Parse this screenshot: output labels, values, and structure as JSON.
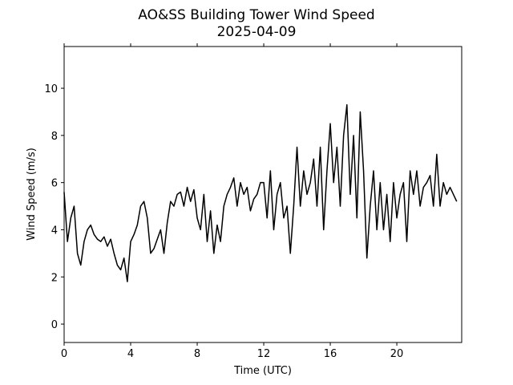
{
  "chart_data": {
    "type": "line",
    "title": "AO&SS Building Tower Wind Speed",
    "subtitle": "2025-04-09",
    "xlabel": "Time (UTC)",
    "ylabel": "Wind Speed (m/s)",
    "xlim": [
      0,
      23.9
    ],
    "ylim": [
      -0.78,
      11.77
    ],
    "xticks": [
      0,
      4,
      8,
      12,
      16,
      20
    ],
    "yticks": [
      0,
      2,
      4,
      6,
      8,
      10
    ],
    "grid": false,
    "x": [
      0,
      0.2,
      0.4,
      0.6,
      0.8,
      1,
      1.2,
      1.4,
      1.6,
      1.8,
      2,
      2.2,
      2.4,
      2.6,
      2.8,
      3,
      3.2,
      3.4,
      3.6,
      3.8,
      4,
      4.2,
      4.4,
      4.6,
      4.8,
      5,
      5.2,
      5.4,
      5.6,
      5.8,
      6,
      6.2,
      6.4,
      6.6,
      6.8,
      7,
      7.2,
      7.4,
      7.6,
      7.8,
      8,
      8.2,
      8.4,
      8.6,
      8.8,
      9,
      9.2,
      9.4,
      9.6,
      9.8,
      10,
      10.2,
      10.4,
      10.6,
      10.8,
      11,
      11.2,
      11.4,
      11.6,
      11.8,
      12,
      12.2,
      12.4,
      12.6,
      12.8,
      13,
      13.2,
      13.4,
      13.6,
      13.8,
      14,
      14.2,
      14.4,
      14.6,
      14.8,
      15,
      15.2,
      15.4,
      15.6,
      15.8,
      16,
      16.2,
      16.4,
      16.6,
      16.8,
      17,
      17.2,
      17.4,
      17.6,
      17.8,
      18,
      18.2,
      18.4,
      18.6,
      18.8,
      19,
      19.2,
      19.4,
      19.6,
      19.8,
      20,
      20.2,
      20.4,
      20.6,
      20.8,
      21,
      21.2,
      21.4,
      21.6,
      21.8,
      22,
      22.2,
      22.4,
      22.6,
      22.8,
      23,
      23.2,
      23.4,
      23.6
    ],
    "series": [
      {
        "name": "Wind Speed",
        "color": "#000000",
        "values": [
          5.6,
          3.5,
          4.5,
          5.0,
          3.0,
          2.5,
          3.5,
          4.0,
          4.2,
          3.8,
          3.6,
          3.5,
          3.7,
          3.3,
          3.6,
          3.0,
          2.5,
          2.3,
          2.8,
          1.8,
          3.5,
          3.8,
          4.2,
          5.0,
          5.2,
          4.5,
          3.0,
          3.2,
          3.6,
          4.0,
          3.0,
          4.3,
          5.2,
          5.0,
          5.5,
          5.6,
          5.0,
          5.8,
          5.2,
          5.7,
          4.5,
          4.0,
          5.5,
          3.5,
          4.8,
          3.0,
          4.2,
          3.5,
          5.0,
          5.5,
          5.8,
          6.2,
          5.0,
          6.0,
          5.5,
          5.8,
          4.8,
          5.3,
          5.5,
          6.0,
          6.0,
          4.5,
          6.5,
          4.0,
          5.5,
          6.0,
          4.5,
          5.0,
          3.0,
          5.0,
          7.5,
          5.0,
          6.5,
          5.5,
          6.0,
          7.0,
          5.0,
          7.5,
          4.0,
          6.5,
          8.5,
          6.0,
          7.5,
          5.0,
          8.0,
          9.3,
          5.5,
          8.0,
          4.5,
          9.0,
          6.5,
          2.8,
          5.0,
          6.5,
          4.0,
          6.0,
          4.0,
          5.5,
          3.5,
          6.0,
          4.5,
          5.5,
          6.0,
          3.5,
          6.5,
          5.5,
          6.5,
          5.0,
          5.8,
          6.0,
          6.3,
          5.0,
          7.2,
          5.0,
          6.0,
          5.5,
          5.8,
          5.5,
          5.2
        ]
      }
    ]
  }
}
